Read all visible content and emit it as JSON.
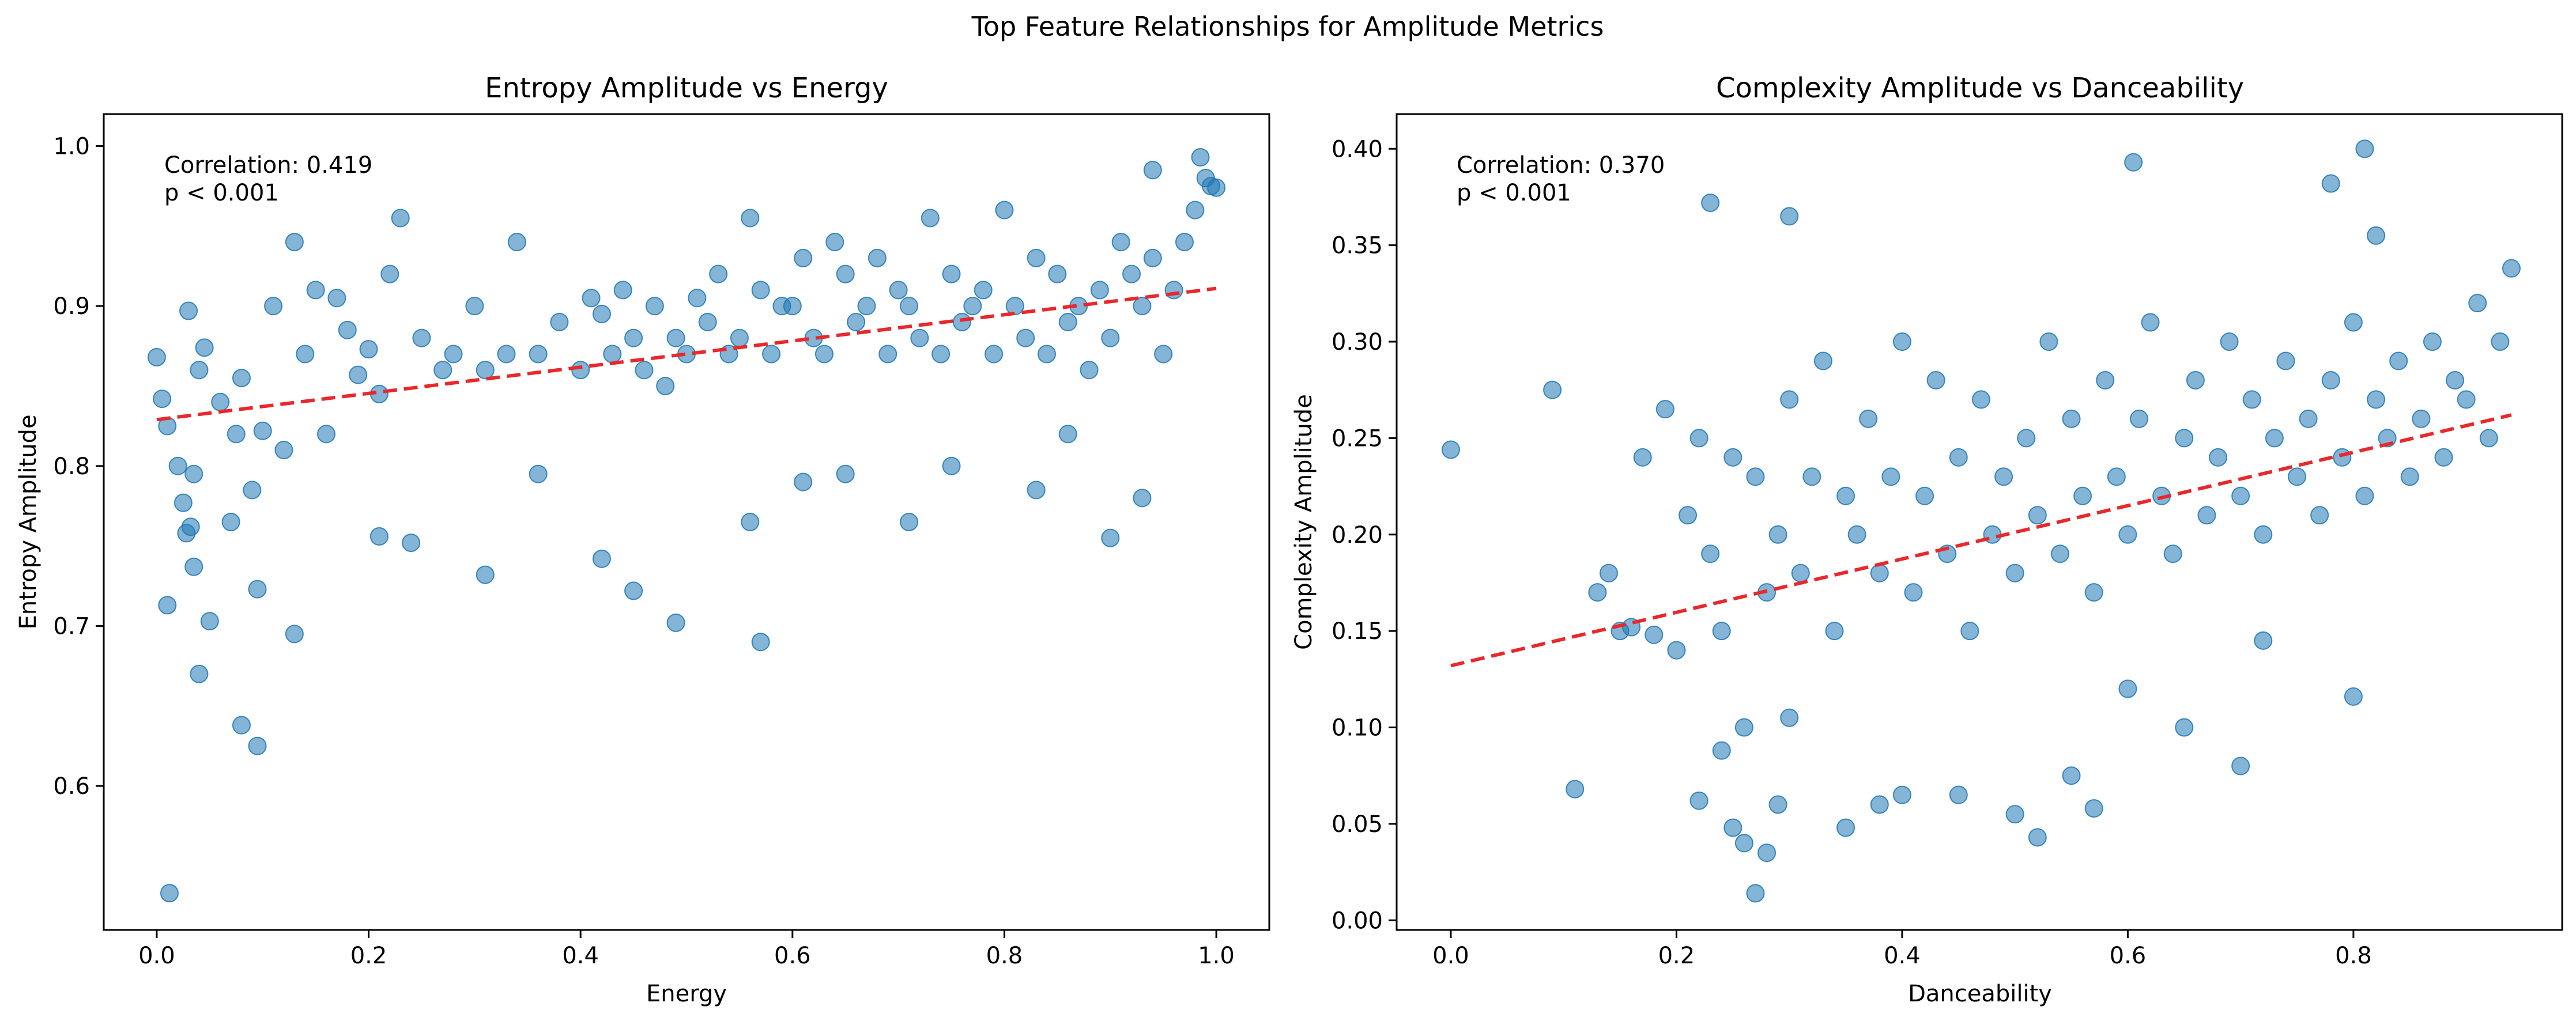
{
  "figure": {
    "suptitle": "Top Feature Relationships for Amplitude Metrics"
  },
  "colors": {
    "points": "#1f77b4",
    "trend": "#e8282b",
    "axes": "#000000"
  },
  "chart_data": [
    {
      "type": "scatter",
      "title": "Entropy Amplitude vs Energy",
      "xlabel": "Energy",
      "ylabel": "Entropy Amplitude",
      "xlim": [
        -0.05,
        1.05
      ],
      "ylim": [
        0.51,
        1.02
      ],
      "xticks": [
        0.0,
        0.2,
        0.4,
        0.6,
        0.8,
        1.0
      ],
      "xtick_labels": [
        "0.0",
        "0.2",
        "0.4",
        "0.6",
        "0.8",
        "1.0"
      ],
      "yticks": [
        0.6,
        0.7,
        0.8,
        0.9,
        1.0
      ],
      "ytick_labels": [
        "0.6",
        "0.7",
        "0.8",
        "0.9",
        "1.0"
      ],
      "grid": false,
      "annotation": {
        "correlation": "Correlation: 0.419",
        "pvalue": "p < 0.001"
      },
      "trend": {
        "x": [
          0.0,
          1.0
        ],
        "y": [
          0.829,
          0.911
        ]
      },
      "series": [
        {
          "x": [
            0.0,
            0.01,
            0.005,
            0.012,
            0.02,
            0.025,
            0.03,
            0.035,
            0.04,
            0.045,
            0.05,
            0.06,
            0.07,
            0.075,
            0.08,
            0.09,
            0.1,
            0.11,
            0.12,
            0.13,
            0.14,
            0.15,
            0.16,
            0.17,
            0.18,
            0.19,
            0.2,
            0.21,
            0.22,
            0.23,
            0.25,
            0.27,
            0.28,
            0.3,
            0.31,
            0.33,
            0.34,
            0.36,
            0.38,
            0.4,
            0.41,
            0.42,
            0.43,
            0.44,
            0.45,
            0.46,
            0.47,
            0.48,
            0.49,
            0.5,
            0.51,
            0.52,
            0.53,
            0.54,
            0.55,
            0.56,
            0.57,
            0.58,
            0.59,
            0.6,
            0.61,
            0.62,
            0.63,
            0.64,
            0.65,
            0.66,
            0.67,
            0.68,
            0.69,
            0.7,
            0.71,
            0.72,
            0.73,
            0.74,
            0.75,
            0.76,
            0.77,
            0.78,
            0.79,
            0.8,
            0.81,
            0.82,
            0.83,
            0.84,
            0.85,
            0.86,
            0.87,
            0.88,
            0.89,
            0.9,
            0.91,
            0.92,
            0.93,
            0.94,
            0.95,
            0.96,
            0.97,
            0.98,
            0.99,
            1.0,
            0.985,
            0.995,
            0.94,
            0.93,
            0.9,
            0.86,
            0.83,
            0.75,
            0.71,
            0.65,
            0.61,
            0.57,
            0.56,
            0.49,
            0.45,
            0.42,
            0.36,
            0.31,
            0.24,
            0.21,
            0.13,
            0.095,
            0.095,
            0.08,
            0.04,
            0.032,
            0.035,
            0.028,
            0.01
          ],
          "y": [
            0.868,
            0.825,
            0.842,
            0.533,
            0.8,
            0.777,
            0.897,
            0.737,
            0.86,
            0.874,
            0.703,
            0.84,
            0.765,
            0.82,
            0.855,
            0.785,
            0.822,
            0.9,
            0.81,
            0.94,
            0.87,
            0.91,
            0.82,
            0.905,
            0.885,
            0.857,
            0.873,
            0.845,
            0.92,
            0.955,
            0.88,
            0.86,
            0.87,
            0.9,
            0.86,
            0.87,
            0.94,
            0.87,
            0.89,
            0.86,
            0.905,
            0.895,
            0.87,
            0.91,
            0.88,
            0.86,
            0.9,
            0.85,
            0.88,
            0.87,
            0.905,
            0.89,
            0.92,
            0.87,
            0.88,
            0.955,
            0.91,
            0.87,
            0.9,
            0.9,
            0.93,
            0.88,
            0.87,
            0.94,
            0.92,
            0.89,
            0.9,
            0.93,
            0.87,
            0.91,
            0.9,
            0.88,
            0.955,
            0.87,
            0.92,
            0.89,
            0.9,
            0.91,
            0.87,
            0.96,
            0.9,
            0.88,
            0.93,
            0.87,
            0.92,
            0.89,
            0.9,
            0.86,
            0.91,
            0.88,
            0.94,
            0.92,
            0.9,
            0.93,
            0.87,
            0.91,
            0.94,
            0.96,
            0.98,
            0.974,
            0.993,
            0.975,
            0.985,
            0.78,
            0.755,
            0.82,
            0.785,
            0.8,
            0.765,
            0.795,
            0.79,
            0.69,
            0.765,
            0.702,
            0.722,
            0.742,
            0.795,
            0.732,
            0.752,
            0.756,
            0.695,
            0.625,
            0.723,
            0.638,
            0.67,
            0.762,
            0.795,
            0.758,
            0.713
          ]
        }
      ]
    },
    {
      "type": "scatter",
      "title": "Complexity Amplitude vs Danceability",
      "xlabel": "Danceability",
      "ylabel": "Complexity Amplitude",
      "xlim": [
        -0.048,
        0.985
      ],
      "ylim": [
        -0.005,
        0.418
      ],
      "xticks": [
        0.0,
        0.2,
        0.4,
        0.6,
        0.8
      ],
      "xtick_labels": [
        "0.0",
        "0.2",
        "0.4",
        "0.6",
        "0.8"
      ],
      "yticks": [
        0.0,
        0.05,
        0.1,
        0.15,
        0.2,
        0.25,
        0.3,
        0.35,
        0.4
      ],
      "ytick_labels": [
        "0.00",
        "0.05",
        "0.10",
        "0.15",
        "0.20",
        "0.25",
        "0.30",
        "0.35",
        "0.40"
      ],
      "grid": false,
      "annotation": {
        "correlation": "Correlation: 0.370",
        "pvalue": "p < 0.001"
      },
      "trend": {
        "x": [
          0.0,
          0.94
        ],
        "y": [
          0.132,
          0.262
        ]
      },
      "series": [
        {
          "x": [
            0.0,
            0.09,
            0.11,
            0.13,
            0.14,
            0.15,
            0.17,
            0.19,
            0.2,
            0.21,
            0.22,
            0.23,
            0.24,
            0.25,
            0.26,
            0.27,
            0.28,
            0.29,
            0.3,
            0.31,
            0.32,
            0.33,
            0.34,
            0.35,
            0.36,
            0.37,
            0.38,
            0.39,
            0.4,
            0.41,
            0.42,
            0.43,
            0.44,
            0.45,
            0.46,
            0.47,
            0.48,
            0.49,
            0.5,
            0.51,
            0.52,
            0.53,
            0.54,
            0.55,
            0.56,
            0.57,
            0.58,
            0.59,
            0.6,
            0.61,
            0.62,
            0.63,
            0.64,
            0.65,
            0.66,
            0.67,
            0.68,
            0.69,
            0.7,
            0.71,
            0.72,
            0.73,
            0.74,
            0.75,
            0.76,
            0.77,
            0.78,
            0.79,
            0.8,
            0.81,
            0.82,
            0.83,
            0.84,
            0.85,
            0.86,
            0.87,
            0.88,
            0.89,
            0.9,
            0.91,
            0.92,
            0.93,
            0.94,
            0.23,
            0.3,
            0.24,
            0.605,
            0.78,
            0.81,
            0.82,
            0.27,
            0.28,
            0.22,
            0.25,
            0.3,
            0.35,
            0.38,
            0.4,
            0.45,
            0.5,
            0.52,
            0.55,
            0.57,
            0.6,
            0.65,
            0.7,
            0.72,
            0.8,
            0.18,
            0.16,
            0.26,
            0.29
          ],
          "y": [
            0.244,
            0.275,
            0.068,
            0.17,
            0.18,
            0.15,
            0.24,
            0.265,
            0.14,
            0.21,
            0.25,
            0.19,
            0.15,
            0.24,
            0.1,
            0.23,
            0.17,
            0.2,
            0.27,
            0.18,
            0.23,
            0.29,
            0.15,
            0.22,
            0.2,
            0.26,
            0.18,
            0.23,
            0.3,
            0.17,
            0.22,
            0.28,
            0.19,
            0.24,
            0.15,
            0.27,
            0.2,
            0.23,
            0.18,
            0.25,
            0.21,
            0.3,
            0.19,
            0.26,
            0.22,
            0.17,
            0.28,
            0.23,
            0.2,
            0.26,
            0.31,
            0.22,
            0.19,
            0.25,
            0.28,
            0.21,
            0.24,
            0.3,
            0.22,
            0.27,
            0.2,
            0.25,
            0.29,
            0.23,
            0.26,
            0.21,
            0.28,
            0.24,
            0.31,
            0.22,
            0.27,
            0.25,
            0.29,
            0.23,
            0.26,
            0.3,
            0.24,
            0.28,
            0.27,
            0.32,
            0.25,
            0.3,
            0.338,
            0.372,
            0.365,
            0.088,
            0.393,
            0.382,
            0.4,
            0.355,
            0.014,
            0.035,
            0.062,
            0.048,
            0.105,
            0.048,
            0.06,
            0.065,
            0.065,
            0.055,
            0.043,
            0.075,
            0.058,
            0.12,
            0.1,
            0.08,
            0.145,
            0.116,
            0.148,
            0.152,
            0.04,
            0.06
          ]
        }
      ]
    }
  ]
}
